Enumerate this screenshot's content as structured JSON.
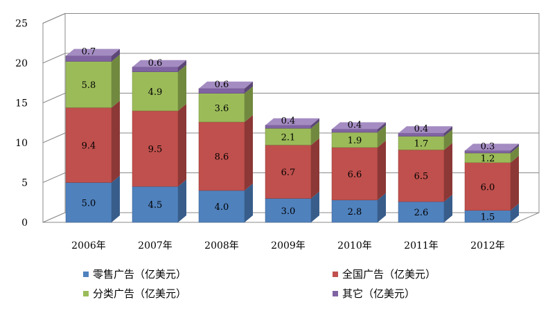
{
  "chart_data": {
    "type": "bar",
    "stacked": true,
    "style": "3d",
    "categories": [
      "2006年",
      "2007年",
      "2008年",
      "2009年",
      "2010年",
      "2011年",
      "2012年"
    ],
    "series": [
      {
        "name": "零售广告（亿美元）",
        "values": [
          5.0,
          4.5,
          4.0,
          3.0,
          2.8,
          2.6,
          1.5
        ],
        "labels": [
          "5.0",
          "4.5",
          "4.0",
          "3.0",
          "2.8",
          "2.6",
          "1.5"
        ],
        "color": "#4f81bd",
        "side": "#385d8a",
        "top": "#7ea6d9"
      },
      {
        "name": "全国广告（亿美元）",
        "values": [
          9.4,
          9.5,
          8.6,
          6.7,
          6.6,
          6.5,
          6.0
        ],
        "labels": [
          "9.4",
          "9.5",
          "8.6",
          "6.7",
          "6.6",
          "6.5",
          "6.0"
        ],
        "color": "#c0504d",
        "side": "#8c3836",
        "top": "#d98583"
      },
      {
        "name": "分类广告（亿美元）",
        "values": [
          5.8,
          4.9,
          3.6,
          2.1,
          1.9,
          1.7,
          1.2
        ],
        "labels": [
          "5.8",
          "4.9",
          "3.6",
          "2.1",
          "1.9",
          "1.7",
          "1.2"
        ],
        "color": "#9bbb59",
        "side": "#71893f",
        "top": "#bfd88f"
      },
      {
        "name": "其它（亿美元）",
        "values": [
          0.7,
          0.6,
          0.6,
          0.4,
          0.4,
          0.4,
          0.3
        ],
        "labels": [
          "0.7",
          "0.6",
          "0.6",
          "0.4",
          "0.4",
          "0.4",
          "0.3"
        ],
        "color": "#8064a2",
        "side": "#5c4776",
        "top": "#a48cc2"
      }
    ],
    "ylim": [
      0,
      25
    ],
    "yticks": [
      "0",
      "5",
      "10",
      "15",
      "20",
      "25"
    ],
    "grid": true,
    "legend_position": "bottom",
    "title": "",
    "xlabel": "",
    "ylabel": ""
  }
}
